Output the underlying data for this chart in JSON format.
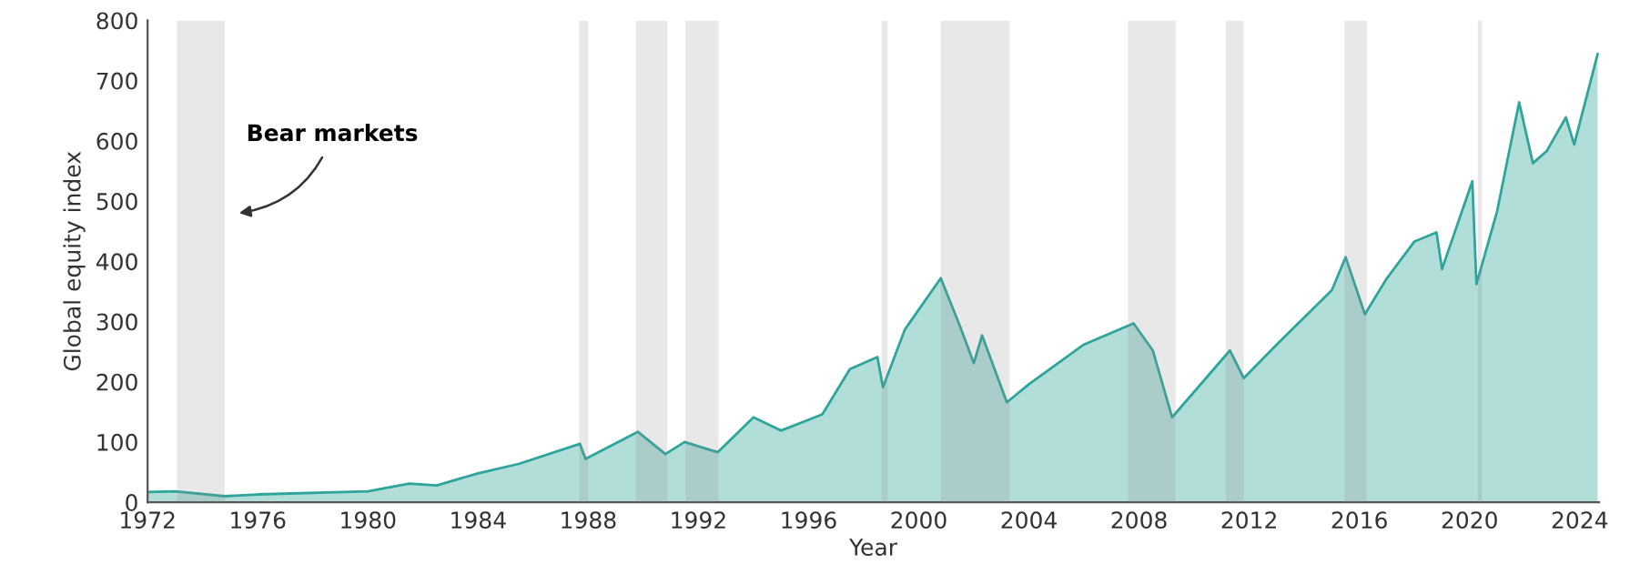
{
  "chart_data": {
    "type": "area",
    "xlabel": "Year",
    "ylabel": "Global equity index",
    "xlim": [
      1972,
      2024.7
    ],
    "ylim": [
      0,
      800
    ],
    "xticks": [
      1972,
      1976,
      1980,
      1984,
      1988,
      1992,
      1996,
      2000,
      2004,
      2008,
      2012,
      2016,
      2020,
      2024
    ],
    "yticks": [
      0,
      100,
      200,
      300,
      400,
      500,
      600,
      700,
      800
    ],
    "grid": false,
    "legend": false,
    "series": [
      {
        "color": "#2ea59b",
        "x": [
          1972,
          1973,
          1974.8,
          1976,
          1980,
          1981.5,
          1982.5,
          1984,
          1985.5,
          1987.7,
          1987.9,
          1989.8,
          1990.8,
          1991.5,
          1992.7,
          1994,
          1995,
          1996.5,
          1997.5,
          1998.5,
          1998.7,
          1999.5,
          2000.8,
          2001.5,
          2002,
          2002.3,
          2003.2,
          2004,
          2006,
          2007.8,
          2008.5,
          2009.2,
          2011.3,
          2011.8,
          2013,
          2015,
          2015.5,
          2016.2,
          2017,
          2018,
          2018.8,
          2019,
          2020.1,
          2020.25,
          2021,
          2021.8,
          2022.3,
          2022.8,
          2023.5,
          2023.8,
          2024.65
        ],
        "values": [
          17,
          18,
          10,
          13,
          18,
          31,
          28,
          48,
          64,
          97,
          72,
          117,
          80,
          100,
          83,
          141,
          119,
          146,
          221,
          241,
          191,
          287,
          372,
          292,
          231,
          277,
          166,
          196,
          262,
          297,
          252,
          141,
          252,
          206,
          262,
          352,
          407,
          312,
          372,
          433,
          448,
          387,
          533,
          362,
          483,
          664,
          563,
          583,
          639,
          594,
          744
        ]
      }
    ],
    "bands": [
      {
        "axis": "x",
        "from": 1973.07,
        "to": 1974.8
      },
      {
        "axis": "x",
        "from": 1987.67,
        "to": 1988.0
      },
      {
        "axis": "x",
        "from": 1989.73,
        "to": 1990.87
      },
      {
        "axis": "x",
        "from": 1991.53,
        "to": 1992.73
      },
      {
        "axis": "x",
        "from": 1998.65,
        "to": 1998.87
      },
      {
        "axis": "x",
        "from": 2000.8,
        "to": 2003.3
      },
      {
        "axis": "x",
        "from": 2007.6,
        "to": 2009.33
      },
      {
        "axis": "x",
        "from": 2011.15,
        "to": 2011.8
      },
      {
        "axis": "x",
        "from": 2015.45,
        "to": 2016.27
      },
      {
        "axis": "x",
        "from": 2020.3,
        "to": 2020.45
      }
    ],
    "annotations": [
      "Bear markets"
    ]
  }
}
